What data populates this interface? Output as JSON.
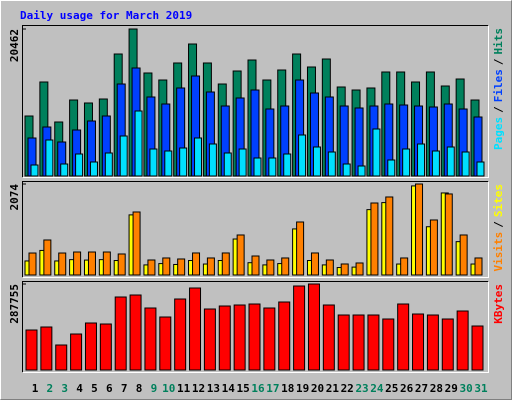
{
  "title": "Daily usage for March 2019",
  "categories": [
    "1",
    "2",
    "3",
    "4",
    "5",
    "6",
    "7",
    "8",
    "9",
    "10",
    "11",
    "12",
    "13",
    "14",
    "15",
    "16",
    "17",
    "18",
    "19",
    "20",
    "21",
    "22",
    "23",
    "24",
    "25",
    "26",
    "27",
    "28",
    "29",
    "30",
    "31"
  ],
  "category_colors": [
    "#000000",
    "#00805c",
    "#00805c",
    "#000000",
    "#000000",
    "#000000",
    "#000000",
    "#000000",
    "#00805c",
    "#00805c",
    "#000000",
    "#000000",
    "#000000",
    "#000000",
    "#000000",
    "#00805c",
    "#00805c",
    "#000000",
    "#000000",
    "#000000",
    "#000000",
    "#000000",
    "#00805c",
    "#00805c",
    "#000000",
    "#000000",
    "#000000",
    "#000000",
    "#000000",
    "#00805c",
    "#00805c"
  ],
  "legend_separator": "/",
  "chart_data": [
    {
      "type": "bar",
      "ylim": [
        0,
        20462
      ],
      "yticks": [
        20462
      ],
      "series": [
        {
          "name": "Hits",
          "color": "#00805c",
          "values": [
            8352,
            13085,
            7517,
            10579,
            10162,
            10718,
            16982,
            20462,
            14338,
            13363,
            15730,
            18374,
            15730,
            12806,
            14616,
            16147,
            13363,
            14755,
            16982,
            15173,
            16286,
            12389,
            11971,
            12250,
            14477,
            14477,
            13085,
            14477,
            12528,
            13502,
            10579
          ]
        },
        {
          "name": "Files",
          "color": "#0040ff",
          "values": [
            5290,
            6821,
            4733,
            6403,
            7656,
            8352,
            12806,
            15034,
            10997,
            10022,
            12250,
            13920,
            11693,
            9744,
            10858,
            11971,
            9326,
            9744,
            13363,
            11554,
            10997,
            9744,
            9466,
            9744,
            10022,
            9883,
            9744,
            9605,
            10022,
            9326,
            8213
          ]
        },
        {
          "name": "Pages",
          "color": "#00e0ff",
          "values": [
            1531,
            5011,
            1670,
            3062,
            1949,
            3202,
            5568,
            9048,
            3758,
            3480,
            3898,
            5290,
            4454,
            3202,
            3758,
            2506,
            2506,
            3062,
            5707,
            4037,
            3341,
            1670,
            1392,
            6542,
            2227,
            3758,
            4454,
            3480,
            4037,
            3341,
            1949
          ]
        }
      ]
    },
    {
      "type": "bar",
      "ylim": [
        0,
        2074
      ],
      "yticks": [
        2074
      ],
      "series": [
        {
          "name": "Sites",
          "color": "#ffff00",
          "values": [
            320,
            560,
            320,
            350,
            340,
            350,
            330,
            1370,
            230,
            260,
            240,
            330,
            250,
            330,
            820,
            280,
            230,
            260,
            1050,
            330,
            230,
            170,
            180,
            1490,
            1650,
            250,
            2030,
            1100,
            1870,
            760,
            250
          ]
        },
        {
          "name": "Visits",
          "color": "#ff8000",
          "values": [
            501,
            798,
            501,
            524,
            524,
            524,
            479,
            1436,
            342,
            388,
            365,
            502,
            388,
            502,
            912,
            433,
            342,
            388,
            1208,
            502,
            342,
            251,
            274,
            1641,
            1778,
            388,
            2074,
            1254,
            1847,
            912,
            388
          ]
        }
      ]
    },
    {
      "type": "bar",
      "ylim": [
        0,
        287755
      ],
      "yticks": [
        287755
      ],
      "series": [
        {
          "name": "KBytes",
          "color": "#ff0000",
          "values": [
            133840,
            143880,
            83650,
            120460,
            157260,
            153920,
            244260,
            250950,
            207450,
            177340,
            237570,
            274370,
            204110,
            214140,
            217490,
            220840,
            207450,
            227530,
            281070,
            287755,
            217490,
            184030,
            184030,
            184030,
            170650,
            220840,
            187380,
            184030,
            170650,
            197410,
            147220
          ]
        }
      ]
    }
  ]
}
